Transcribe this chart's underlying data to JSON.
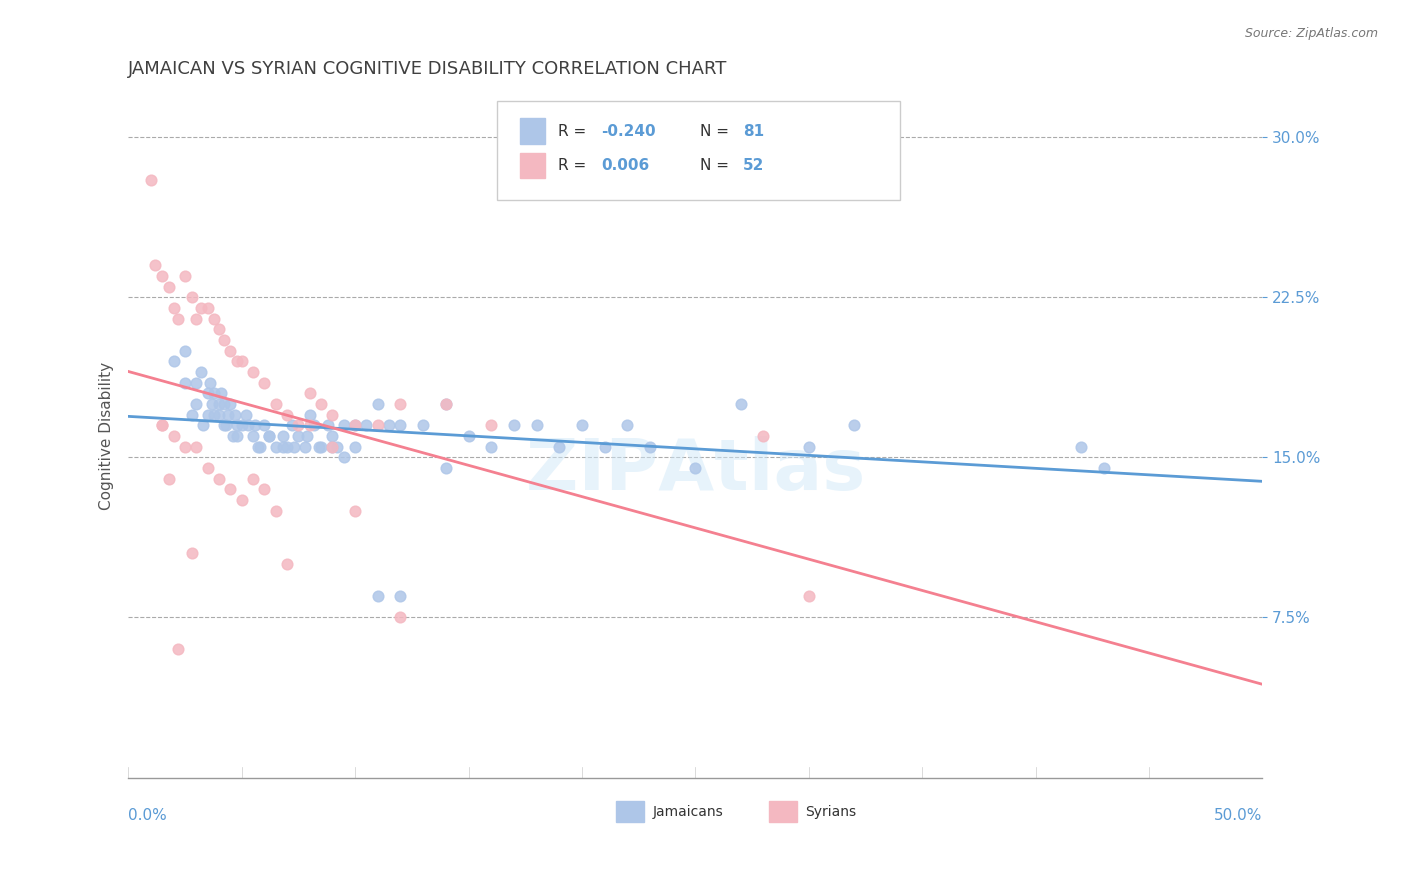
{
  "title": "JAMAICAN VS SYRIAN COGNITIVE DISABILITY CORRELATION CHART",
  "source": "Source: ZipAtlas.com",
  "ylabel": "Cognitive Disability",
  "xlim": [
    0.0,
    0.5
  ],
  "ylim": [
    0.0,
    0.32
  ],
  "yticks": [
    0.075,
    0.15,
    0.225,
    0.3
  ],
  "ytick_labels": [
    "7.5%",
    "15.0%",
    "22.5%",
    "30.0%"
  ],
  "jamaican_color": "#aec6e8",
  "syrian_color": "#f4b8c1",
  "jamaican_line_color": "#5b9bd5",
  "syrian_line_color": "#f48090",
  "title_color": "#404040",
  "axis_color": "#5b9bd5",
  "jamaicans_x": [
    0.02,
    0.025,
    0.03,
    0.03,
    0.032,
    0.035,
    0.035,
    0.036,
    0.037,
    0.038,
    0.04,
    0.04,
    0.041,
    0.042,
    0.043,
    0.044,
    0.045,
    0.046,
    0.047,
    0.048,
    0.05,
    0.052,
    0.055,
    0.056,
    0.058,
    0.06,
    0.062,
    0.065,
    0.068,
    0.07,
    0.072,
    0.075,
    0.078,
    0.08,
    0.082,
    0.085,
    0.088,
    0.09,
    0.092,
    0.095,
    0.1,
    0.105,
    0.11,
    0.115,
    0.12,
    0.13,
    0.14,
    0.15,
    0.16,
    0.17,
    0.18,
    0.19,
    0.2,
    0.21,
    0.22,
    0.23,
    0.25,
    0.27,
    0.3,
    0.32,
    0.025,
    0.028,
    0.033,
    0.038,
    0.042,
    0.048,
    0.053,
    0.057,
    0.062,
    0.068,
    0.073,
    0.079,
    0.084,
    0.09,
    0.095,
    0.1,
    0.11,
    0.12,
    0.14,
    0.42,
    0.43
  ],
  "jamaicans_y": [
    0.195,
    0.2,
    0.185,
    0.175,
    0.19,
    0.18,
    0.17,
    0.185,
    0.175,
    0.18,
    0.175,
    0.17,
    0.18,
    0.175,
    0.165,
    0.17,
    0.175,
    0.16,
    0.17,
    0.165,
    0.165,
    0.17,
    0.16,
    0.165,
    0.155,
    0.165,
    0.16,
    0.155,
    0.16,
    0.155,
    0.165,
    0.16,
    0.155,
    0.17,
    0.165,
    0.155,
    0.165,
    0.16,
    0.155,
    0.165,
    0.165,
    0.165,
    0.175,
    0.165,
    0.165,
    0.165,
    0.175,
    0.16,
    0.155,
    0.165,
    0.165,
    0.155,
    0.165,
    0.155,
    0.165,
    0.155,
    0.145,
    0.175,
    0.155,
    0.165,
    0.185,
    0.17,
    0.165,
    0.17,
    0.165,
    0.16,
    0.165,
    0.155,
    0.16,
    0.155,
    0.155,
    0.16,
    0.155,
    0.155,
    0.15,
    0.155,
    0.085,
    0.085,
    0.145,
    0.155,
    0.145
  ],
  "syrians_x": [
    0.01,
    0.012,
    0.015,
    0.018,
    0.02,
    0.022,
    0.025,
    0.028,
    0.03,
    0.032,
    0.035,
    0.038,
    0.04,
    0.042,
    0.045,
    0.048,
    0.05,
    0.055,
    0.06,
    0.065,
    0.07,
    0.075,
    0.08,
    0.085,
    0.09,
    0.1,
    0.11,
    0.12,
    0.14,
    0.16,
    0.015,
    0.02,
    0.025,
    0.03,
    0.035,
    0.04,
    0.045,
    0.05,
    0.055,
    0.06,
    0.065,
    0.07,
    0.08,
    0.09,
    0.1,
    0.12,
    0.28,
    0.3,
    0.015,
    0.018,
    0.022,
    0.028
  ],
  "syrians_y": [
    0.28,
    0.24,
    0.235,
    0.23,
    0.22,
    0.215,
    0.235,
    0.225,
    0.215,
    0.22,
    0.22,
    0.215,
    0.21,
    0.205,
    0.2,
    0.195,
    0.195,
    0.19,
    0.185,
    0.175,
    0.17,
    0.165,
    0.18,
    0.175,
    0.17,
    0.165,
    0.165,
    0.175,
    0.175,
    0.165,
    0.165,
    0.16,
    0.155,
    0.155,
    0.145,
    0.14,
    0.135,
    0.13,
    0.14,
    0.135,
    0.125,
    0.1,
    0.165,
    0.155,
    0.125,
    0.075,
    0.16,
    0.085,
    0.165,
    0.14,
    0.06,
    0.105
  ]
}
